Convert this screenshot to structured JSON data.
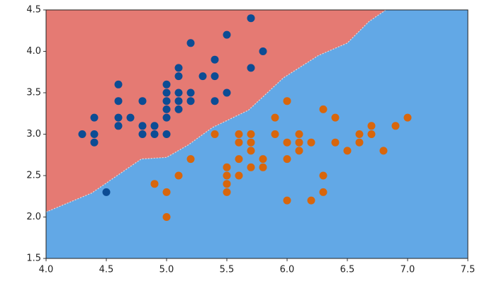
{
  "chart_data": {
    "type": "scatter",
    "xlim": [
      4.0,
      7.5
    ],
    "ylim": [
      1.5,
      4.5
    ],
    "xticks": [
      {
        "value": 4.0,
        "label": "4.0"
      },
      {
        "value": 4.5,
        "label": "4.5"
      },
      {
        "value": 5.0,
        "label": "5.0"
      },
      {
        "value": 5.5,
        "label": "5.5"
      },
      {
        "value": 6.0,
        "label": "6.0"
      },
      {
        "value": 6.5,
        "label": "6.5"
      },
      {
        "value": 7.0,
        "label": "7.0"
      },
      {
        "value": 7.5,
        "label": "7.5"
      }
    ],
    "yticks": [
      {
        "value": 1.5,
        "label": "1.5"
      },
      {
        "value": 2.0,
        "label": "2.0"
      },
      {
        "value": 2.5,
        "label": "2.5"
      },
      {
        "value": 3.0,
        "label": "3.0"
      },
      {
        "value": 3.5,
        "label": "3.5"
      },
      {
        "value": 4.0,
        "label": "4.0"
      },
      {
        "value": 4.5,
        "label": "4.5"
      }
    ],
    "boundary": {
      "x": [
        4.0,
        4.38,
        4.79,
        5.0,
        5.18,
        5.38,
        5.68,
        5.97,
        6.26,
        6.5,
        6.68,
        6.82
      ],
      "y": [
        2.06,
        2.29,
        2.7,
        2.72,
        2.87,
        3.08,
        3.29,
        3.68,
        3.95,
        4.1,
        4.36,
        4.5
      ]
    },
    "region_colors": {
      "upper": "#e57a73",
      "lower": "#62a8e6"
    },
    "series": [
      {
        "color": "#0c4c94",
        "x": [
          4.3,
          4.4,
          4.4,
          4.4,
          4.5,
          4.6,
          4.6,
          4.6,
          4.6,
          4.7,
          4.8,
          4.8,
          4.8,
          4.9,
          4.9,
          5.0,
          5.0,
          5.0,
          5.0,
          5.0,
          5.0,
          5.1,
          5.1,
          5.1,
          5.1,
          5.1,
          5.2,
          5.2,
          5.2,
          5.3,
          5.4,
          5.4,
          5.4,
          5.5,
          5.5,
          5.7,
          5.7,
          5.8
        ],
        "values": [
          3.0,
          3.0,
          2.9,
          3.2,
          2.3,
          3.1,
          3.2,
          3.4,
          3.6,
          3.2,
          3.0,
          3.1,
          3.4,
          3.0,
          3.1,
          3.0,
          3.2,
          3.3,
          3.4,
          3.5,
          3.6,
          3.3,
          3.4,
          3.5,
          3.7,
          3.8,
          3.4,
          3.5,
          4.1,
          3.7,
          3.4,
          3.7,
          3.9,
          3.5,
          4.2,
          3.8,
          4.4,
          4.0
        ]
      },
      {
        "color": "#d8660c",
        "x": [
          4.9,
          5.0,
          5.0,
          5.1,
          5.2,
          5.4,
          5.5,
          5.5,
          5.5,
          5.5,
          5.6,
          5.6,
          5.6,
          5.6,
          5.7,
          5.7,
          5.7,
          5.7,
          5.8,
          5.8,
          5.9,
          5.9,
          6.0,
          6.0,
          6.0,
          6.0,
          6.1,
          6.1,
          6.1,
          6.2,
          6.2,
          6.3,
          6.3,
          6.3,
          6.4,
          6.4,
          6.5,
          6.6,
          6.6,
          6.7,
          6.7,
          6.8,
          6.9,
          7.0
        ],
        "values": [
          2.4,
          2.0,
          2.3,
          2.5,
          2.7,
          3.0,
          2.3,
          2.4,
          2.5,
          2.6,
          2.5,
          2.7,
          2.9,
          3.0,
          2.6,
          2.8,
          2.9,
          3.0,
          2.6,
          2.7,
          3.0,
          3.2,
          2.2,
          2.7,
          2.9,
          3.4,
          2.8,
          2.9,
          3.0,
          2.2,
          2.9,
          2.3,
          2.5,
          3.3,
          2.9,
          3.2,
          2.8,
          2.9,
          3.0,
          3.0,
          3.1,
          2.8,
          3.1,
          3.2
        ]
      }
    ]
  }
}
